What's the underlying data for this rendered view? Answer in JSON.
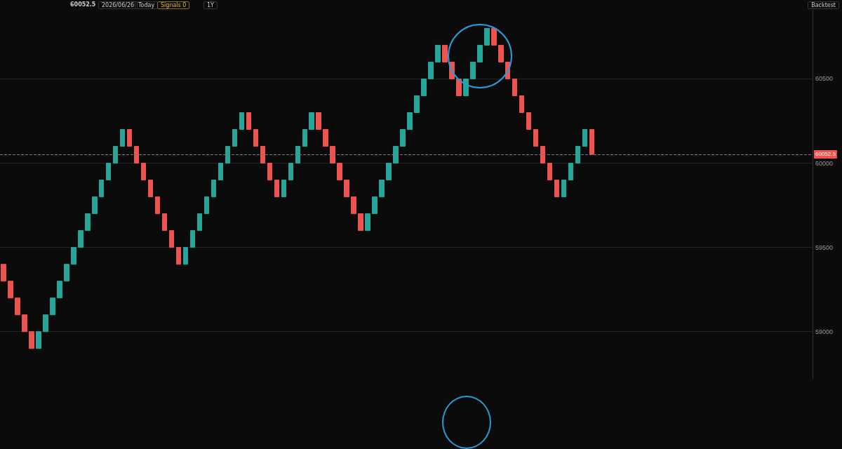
{
  "chart_data": {
    "type": "candlestick",
    "categories": [
      null,
      null,
      null,
      null,
      null,
      null,
      null,
      null,
      null,
      null,
      null,
      null,
      null,
      null,
      null,
      null,
      null,
      null,
      null,
      null,
      null,
      null,
      null,
      null,
      null,
      null,
      null,
      null,
      null,
      null,
      null,
      null,
      null,
      null,
      null,
      null,
      null,
      null,
      null,
      null,
      null,
      null,
      null,
      null,
      null,
      null,
      null,
      null,
      null,
      null,
      null,
      null,
      null,
      null,
      null,
      null,
      null,
      null,
      null,
      null,
      null,
      null,
      null,
      null,
      null,
      null,
      null,
      null,
      null,
      null,
      null,
      null,
      null,
      null,
      null,
      null,
      null,
      null,
      null,
      null,
      null,
      null,
      null,
      null,
      null,
      null,
      null,
      null,
      null,
      null,
      null,
      null,
      null,
      null,
      null,
      null,
      null,
      null,
      null,
      null,
      null,
      null,
      null,
      null,
      null,
      null,
      null,
      null,
      null,
      null,
      null,
      null,
      null,
      null,
      null,
      null
    ],
    "ohlc": [
      [
        59400,
        59400,
        59300,
        59300
      ],
      [
        59300,
        59300,
        59200,
        59200
      ],
      [
        59200,
        59200,
        59100,
        59100
      ],
      [
        59100,
        59100,
        59000,
        59000
      ],
      [
        59000,
        59000,
        58900,
        58900
      ],
      [
        58900,
        59000,
        58900,
        59000
      ],
      [
        59000,
        59100,
        59000,
        59100
      ],
      [
        59100,
        59200,
        59100,
        59200
      ],
      [
        59200,
        59300,
        59200,
        59300
      ],
      [
        59300,
        59400,
        59300,
        59400
      ],
      [
        59400,
        59500,
        59400,
        59500
      ],
      [
        59500,
        59600,
        59500,
        59600
      ],
      [
        59600,
        59700,
        59600,
        59700
      ],
      [
        59700,
        59800,
        59700,
        59800
      ],
      [
        59800,
        59900,
        59800,
        59900
      ],
      [
        59900,
        60000,
        59900,
        60000
      ],
      [
        60000,
        60100,
        60000,
        60100
      ],
      [
        60100,
        60200,
        60100,
        60200
      ],
      [
        60200,
        60200,
        60100,
        60100
      ],
      [
        60100,
        60100,
        60000,
        60000
      ],
      [
        60000,
        60000,
        59900,
        59900
      ],
      [
        59900,
        59900,
        59800,
        59800
      ],
      [
        59800,
        59800,
        59700,
        59700
      ],
      [
        59700,
        59700,
        59600,
        59600
      ],
      [
        59600,
        59600,
        59500,
        59500
      ],
      [
        59500,
        59500,
        59400,
        59400
      ],
      [
        59400,
        59500,
        59400,
        59500
      ],
      [
        59500,
        59600,
        59500,
        59600
      ],
      [
        59600,
        59700,
        59600,
        59700
      ],
      [
        59700,
        59800,
        59700,
        59800
      ],
      [
        59800,
        59900,
        59800,
        59900
      ],
      [
        59900,
        60000,
        59900,
        60000
      ],
      [
        60000,
        60100,
        60000,
        60100
      ],
      [
        60100,
        60200,
        60100,
        60200
      ],
      [
        60200,
        60300,
        60200,
        60300
      ],
      [
        60300,
        60300,
        60200,
        60200
      ],
      [
        60200,
        60200,
        60100,
        60100
      ],
      [
        60100,
        60100,
        60000,
        60000
      ],
      [
        60000,
        60000,
        59900,
        59900
      ],
      [
        59900,
        59900,
        59800,
        59800
      ],
      [
        59800,
        59900,
        59800,
        59900
      ],
      [
        59900,
        60000,
        59900,
        60000
      ],
      [
        60000,
        60100,
        60000,
        60100
      ],
      [
        60100,
        60200,
        60100,
        60200
      ],
      [
        60200,
        60300,
        60200,
        60300
      ],
      [
        60300,
        60300,
        60200,
        60200
      ],
      [
        60200,
        60200,
        60100,
        60100
      ],
      [
        60100,
        60100,
        60000,
        60000
      ],
      [
        60000,
        60000,
        59900,
        59900
      ],
      [
        59900,
        59900,
        59800,
        59800
      ],
      [
        59800,
        59800,
        59700,
        59700
      ],
      [
        59700,
        59700,
        59600,
        59600
      ],
      [
        59600,
        59700,
        59600,
        59700
      ],
      [
        59700,
        59800,
        59700,
        59800
      ],
      [
        59800,
        59900,
        59800,
        59900
      ],
      [
        59900,
        60000,
        59900,
        60000
      ],
      [
        60000,
        60100,
        60000,
        60100
      ],
      [
        60100,
        60200,
        60100,
        60200
      ],
      [
        60200,
        60300,
        60200,
        60300
      ],
      [
        60300,
        60400,
        60300,
        60400
      ],
      [
        60400,
        60500,
        60400,
        60500
      ],
      [
        60500,
        60600,
        60500,
        60600
      ],
      [
        60600,
        60700,
        60600,
        60700
      ],
      [
        60700,
        60700,
        60600,
        60600
      ],
      [
        60600,
        60600,
        60500,
        60500
      ],
      [
        60500,
        60500,
        60400,
        60400
      ],
      [
        60400,
        60500,
        60400,
        60500
      ],
      [
        60500,
        60600,
        60500,
        60600
      ],
      [
        60600,
        60700,
        60600,
        60700
      ],
      [
        60700,
        60800,
        60700,
        60800
      ],
      [
        60800,
        60800,
        60700,
        60700
      ],
      [
        60700,
        60700,
        60600,
        60600
      ],
      [
        60600,
        60600,
        60500,
        60500
      ],
      [
        60500,
        60500,
        60400,
        60400
      ],
      [
        60400,
        60400,
        60300,
        60300
      ],
      [
        60300,
        60300,
        60200,
        60200
      ],
      [
        60200,
        60200,
        60100,
        60100
      ],
      [
        60100,
        60100,
        60000,
        60000
      ],
      [
        60000,
        60000,
        59900,
        59900
      ],
      [
        59900,
        59900,
        59800,
        59800
      ],
      [
        59800,
        59900,
        59800,
        59900
      ],
      [
        59900,
        60000,
        59900,
        60000
      ],
      [
        60000,
        60100,
        60000,
        60100
      ],
      [
        60100,
        60200,
        60100,
        60200
      ],
      [
        60200,
        60200,
        60052.5,
        60052.5
      ],
      null,
      null,
      null,
      null,
      null,
      null,
      null,
      null,
      null,
      null,
      null,
      null,
      null,
      null,
      null,
      null,
      null,
      null,
      null,
      null,
      null,
      null,
      null,
      null,
      null,
      null,
      null,
      null,
      null,
      null,
      null
    ],
    "colors": [
      "#ef5350",
      "#ef5350",
      "#ef5350",
      "#ef5350",
      "#ef5350",
      "#26a69a",
      "#26a69a",
      "#26a69a",
      "#26a69a",
      "#26a69a",
      "#26a69a",
      "#26a69a",
      "#26a69a",
      "#26a69a",
      "#26a69a",
      "#26a69a",
      "#26a69a",
      "#26a69a",
      "#ef5350",
      "#ef5350",
      "#ef5350",
      "#ef5350",
      "#ef5350",
      "#ef5350",
      "#ef5350",
      "#ef5350",
      "#26a69a",
      "#26a69a",
      "#26a69a",
      "#26a69a",
      "#26a69a",
      "#26a69a",
      "#26a69a",
      "#26a69a",
      "#26a69a",
      "#ef5350",
      "#ef5350",
      "#ef5350",
      "#ef5350",
      "#ef5350",
      "#26a69a",
      "#26a69a",
      "#26a69a",
      "#26a69a",
      "#26a69a",
      "#ef5350",
      "#ef5350",
      "#ef5350",
      "#ef5350",
      "#ef5350",
      "#ef5350",
      "#ef5350",
      "#26a69a",
      "#26a69a",
      "#26a69a",
      "#26a69a",
      "#26a69a",
      "#26a69a",
      "#26a69a",
      "#26a69a",
      "#26a69a",
      "#26a69a",
      "#26a69a",
      "#ef5350",
      "#ef5350",
      "#ef5350",
      "#26a69a",
      "#26a69a",
      "#26a69a",
      "#26a69a",
      "#ef5350",
      "#ef5350",
      "#ef5350",
      "#ef5350",
      "#ef5350",
      "#ef5350",
      "#ef5350",
      "#ef5350",
      "#ef5350",
      "#ef5350",
      "#26a69a",
      "#26a69a",
      "#26a69a",
      "#26a69a",
      "#ef5350",
      null,
      null,
      null,
      null,
      null,
      null,
      null,
      null,
      null,
      null,
      null,
      null,
      null,
      null,
      null,
      null,
      null,
      null,
      null,
      null,
      null,
      null,
      null,
      null,
      null,
      null,
      null,
      null,
      null,
      null,
      null
    ],
    "ylim": [
      58720,
      60910
    ],
    "yticks": [
      59000,
      59500,
      60000,
      60500
    ],
    "grid": "y",
    "ref_lines": [
      {
        "axis": "y",
        "value": 60052.5,
        "label": "60052.5",
        "color": "#777777",
        "line_style": "dashed"
      }
    ],
    "annotations": [
      "60052.5",
      "2026/06/26",
      "Today",
      "Signals 0",
      "1Y",
      "Backtest"
    ]
  }
}
